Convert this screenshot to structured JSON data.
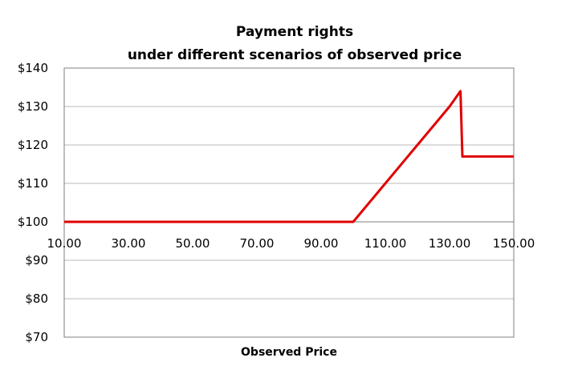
{
  "chart_data": {
    "type": "line",
    "title": "Payment rights",
    "subtitle": "under different scenarios of observed price",
    "xlabel": "Observed Price",
    "ylabel": "",
    "xlim": [
      10,
      150
    ],
    "ylim": [
      70,
      140
    ],
    "x_ticks": [
      10,
      30,
      50,
      70,
      90,
      110,
      130,
      150
    ],
    "x_tick_labels": [
      "10.00",
      "30.00",
      "50.00",
      "70.00",
      "90.00",
      "110.00",
      "130.00",
      "150.00"
    ],
    "y_ticks": [
      70,
      80,
      90,
      100,
      110,
      120,
      130,
      140
    ],
    "y_tick_labels": [
      "$70",
      "$80",
      "$90",
      "$100",
      "$110",
      "$120",
      "$130",
      "$140"
    ],
    "x_axis_crosses_at": 100,
    "grid": true,
    "legend": "none",
    "series": [
      {
        "color": "#e00000",
        "x": [
          10,
          100,
          110,
          120,
          130,
          133.4,
          134,
          150
        ],
        "y": [
          100,
          100,
          110,
          120,
          130,
          134,
          117,
          117
        ]
      }
    ]
  },
  "colors": {
    "line": "#e00000",
    "grid": "#b8b8b8",
    "axis": "#7f7f7f"
  }
}
